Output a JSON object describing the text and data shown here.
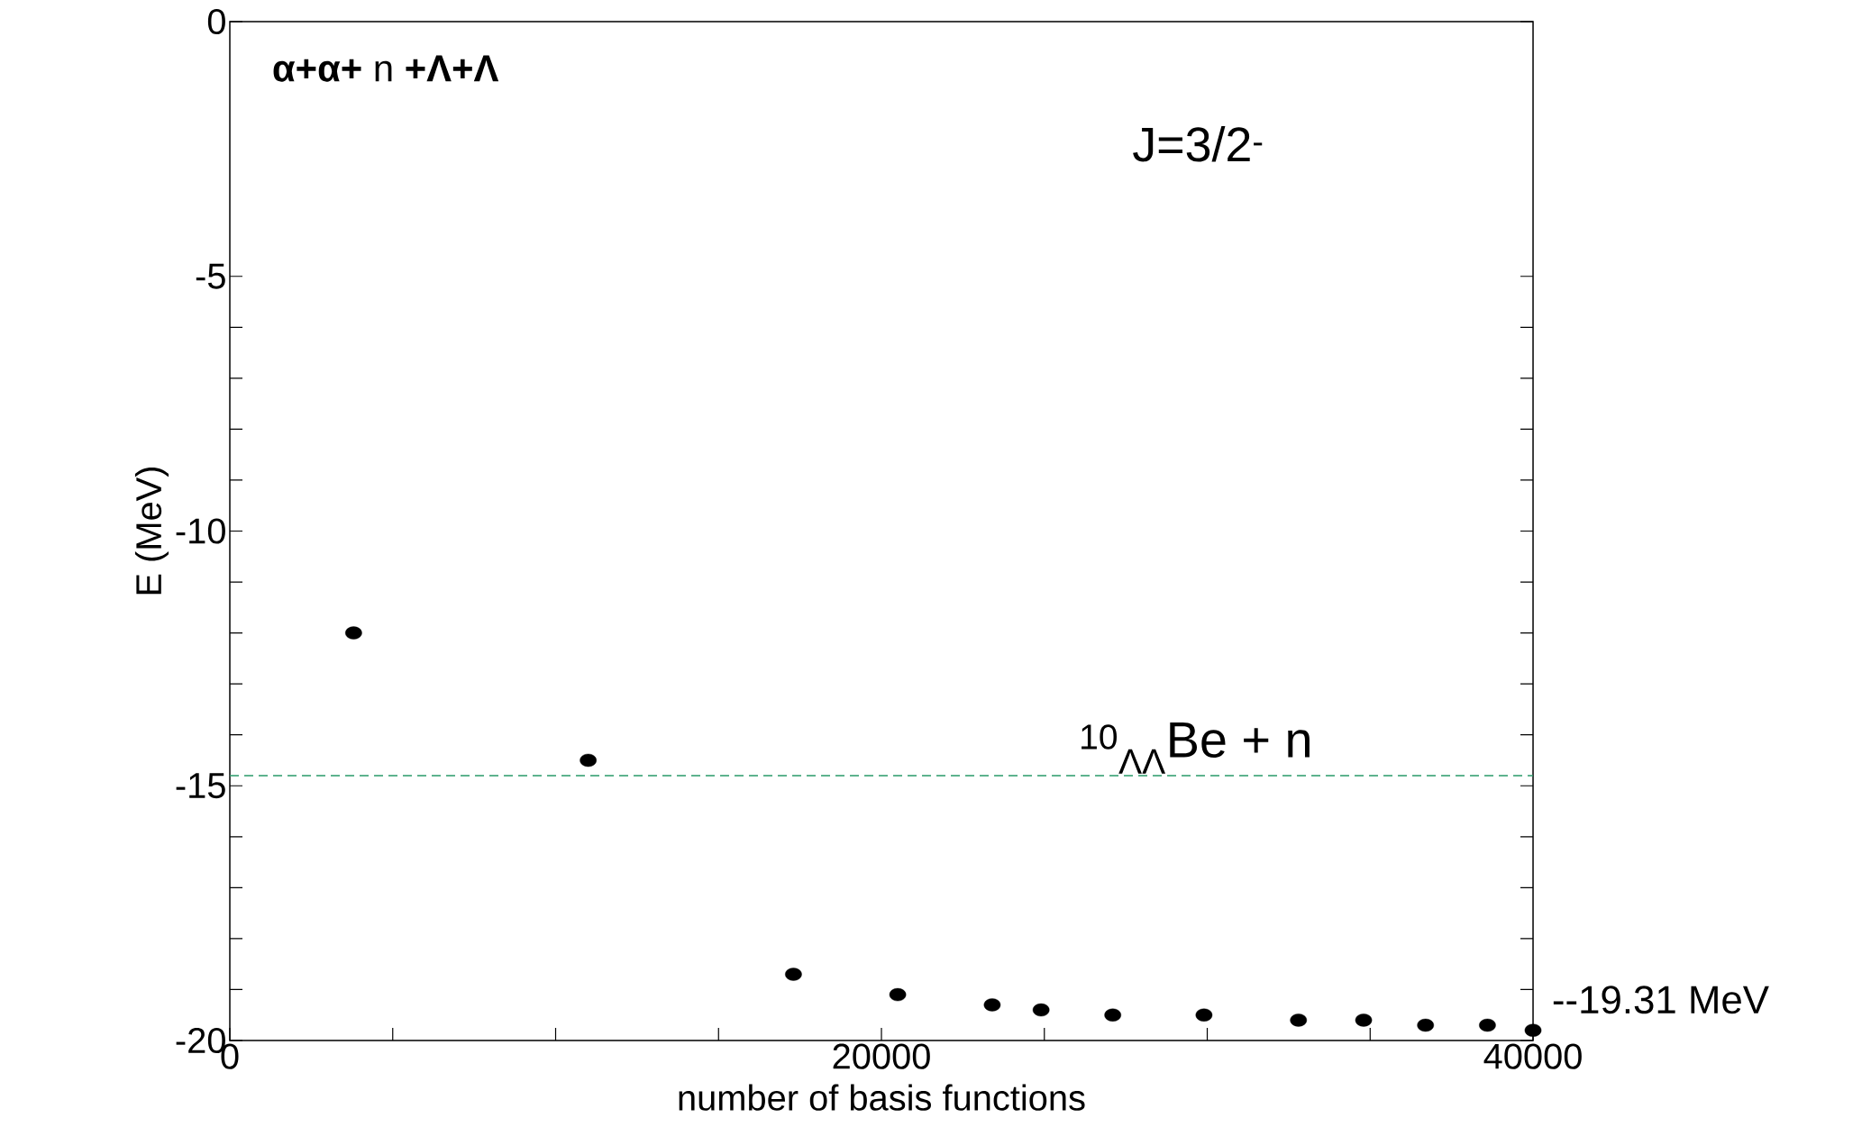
{
  "chart_data": {
    "type": "scatter",
    "xlabel": "number of basis functions",
    "ylabel": "E  (MeV)",
    "annotations": [
      "**α+α+** n **+Λ+Λ**",
      "J=3/2$^{-}$",
      "--19.31 MeV"
    ],
    "x": [
      3800,
      11000,
      17300,
      20500,
      23400,
      24900,
      27100,
      29900,
      32800,
      34800,
      36700,
      38600,
      40000
    ],
    "values": [
      -12.0,
      -14.5,
      -18.7,
      -19.1,
      -19.3,
      -19.4,
      -19.5,
      -19.5,
      -19.6,
      -19.6,
      -19.7,
      -19.7,
      -19.8
    ],
    "color": "#000000",
    "marker": "circle",
    "xlim": [
      0,
      40000
    ],
    "ylim": [
      -20,
      0
    ],
    "xticks": [
      0,
      {
        "value": 5000,
        "label": null
      },
      {
        "value": 10000,
        "label": null
      },
      {
        "value": 15000,
        "label": null
      },
      20000,
      {
        "value": 25000,
        "label": null
      },
      {
        "value": 30000,
        "label": null
      },
      {
        "value": 35000,
        "label": null
      },
      40000
    ],
    "yticks": [
      -20,
      {
        "value": -19,
        "label": null
      },
      {
        "value": -18,
        "label": null
      },
      {
        "value": -17,
        "label": null
      },
      {
        "value": -16,
        "label": null
      },
      -15,
      {
        "value": -14,
        "label": null
      },
      {
        "value": -13,
        "label": null
      },
      {
        "value": -12,
        "label": null
      },
      {
        "value": -11,
        "label": null
      },
      -10,
      {
        "value": -9,
        "label": null
      },
      {
        "value": -8,
        "label": null
      },
      {
        "value": -7,
        "label": null
      },
      {
        "value": -6,
        "label": null
      },
      -5,
      0
    ],
    "ref_lines": [
      {
        "axis": "y",
        "value": -14.8,
        "label": "$^{10}$$_{ΛΛ}$Be + n",
        "color": "#2a9a6a",
        "line_style": "dashed"
      }
    ],
    "grid": false,
    "legend": false
  }
}
